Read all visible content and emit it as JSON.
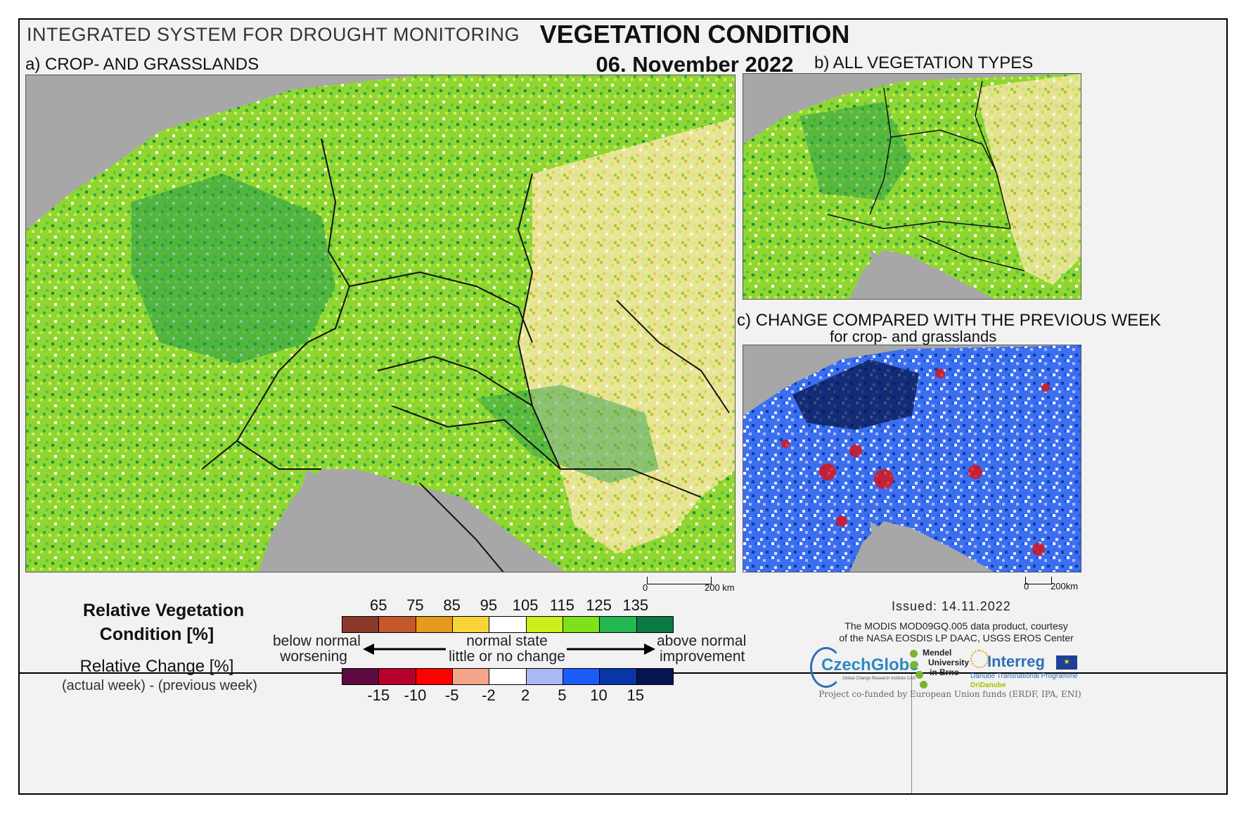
{
  "header": {
    "system": "INTEGRATED SYSTEM FOR DROUGHT MONITORING",
    "title": "VEGETATION CONDITION",
    "date": "06. November 2022"
  },
  "panels": {
    "a": "a) CROP- AND GRASSLANDS",
    "b": "b) ALL VEGETATION TYPES",
    "c_line1": "c) CHANGE COMPARED WITH THE PREVIOUS WEEK",
    "c_line2": "for crop- and grasslands"
  },
  "scalebars": {
    "main": {
      "zero": "0",
      "dist": "200 km"
    },
    "small": {
      "zero": "0",
      "dist": "200km"
    }
  },
  "legend": {
    "rvc_line1": "Relative Vegetation",
    "rvc_line2": "Condition [%]",
    "rc_line1": "Relative Change [%]",
    "rc_line2": "(actual week) - (previous week)",
    "below_line1": "below normal",
    "below_line2": "worsening",
    "normal_line1": "normal state",
    "normal_line2": "little or no change",
    "above_line1": "above normal",
    "above_line2": "improvement",
    "rvc_ticks": [
      "65",
      "75",
      "85",
      "95",
      "105",
      "115",
      "125",
      "135"
    ],
    "rvc_colors": [
      "#8b3a2a",
      "#c4582a",
      "#e39a1f",
      "#f7d538",
      "#ffffff",
      "#cbee1c",
      "#7fe01c",
      "#22b84f",
      "#0c7a45"
    ],
    "rc_ticks": [
      "-15",
      "-10",
      "-5",
      "-2",
      "2",
      "5",
      "10",
      "15"
    ],
    "rc_colors": [
      "#5c0a3f",
      "#b8002e",
      "#ff0000",
      "#f4a58a",
      "#ffffff",
      "#a9b9f2",
      "#1a5cf5",
      "#0836a8",
      "#06154f"
    ]
  },
  "footer": {
    "issued": "Issued: 14.11.2022",
    "credit_line1": "The MODIS MOD09GQ.005 data product, courtesy",
    "credit_line2": "of the NASA EOSDIS LP DAAC, USGS EROS Center",
    "czechglobe": "CzechGlobe",
    "czechglobe_sub": "Global Change Research Institute CAS",
    "mendel_line1": "Mendel",
    "mendel_line2": "University",
    "mendel_line3": "in Brno",
    "interreg": "Interreg",
    "interreg_sub": "Danube Transnational Programme",
    "dridanube": "DriDanube",
    "funding": "Project co-funded by European Union funds (ERDF, IPA, ENI)"
  },
  "colors": {
    "sea": "#a7a7a7",
    "background": "#f2f2f2"
  }
}
